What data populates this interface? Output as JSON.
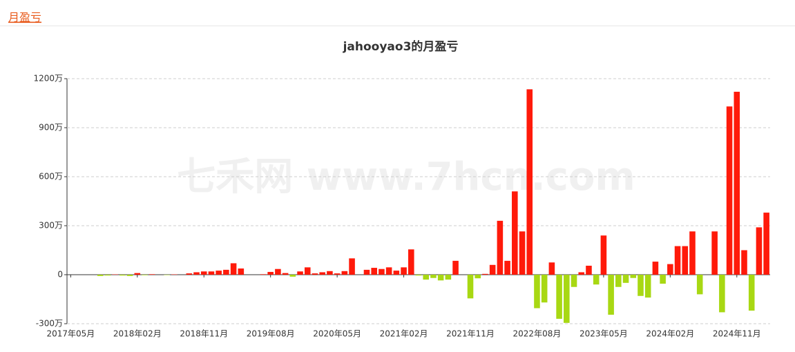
{
  "header": {
    "tab": "月盈亏"
  },
  "chart_data": {
    "type": "bar",
    "title": "jahooyao3的月盈亏",
    "watermark": "七禾网 www.7hcn.com",
    "categories": [
      "2017年05月",
      null,
      null,
      null,
      null,
      null,
      null,
      null,
      null,
      "2018年02月",
      null,
      null,
      null,
      null,
      null,
      null,
      null,
      null,
      "2018年11月",
      null,
      null,
      null,
      null,
      null,
      null,
      null,
      null,
      "2019年08月",
      null,
      null,
      null,
      null,
      null,
      null,
      null,
      null,
      "2020年05月",
      null,
      null,
      null,
      null,
      null,
      null,
      null,
      null,
      "2021年02月",
      null,
      null,
      null,
      null,
      null,
      null,
      null,
      null,
      "2021年11月",
      null,
      null,
      null,
      null,
      null,
      null,
      null,
      null,
      "2022年08月",
      null,
      null,
      null,
      null,
      null,
      null,
      null,
      null,
      "2023年05月",
      null,
      null,
      null,
      null,
      null,
      null,
      null,
      null,
      "2024年02月",
      null,
      null,
      null,
      null,
      null,
      null,
      null,
      null,
      "2024年11月",
      null,
      null,
      null,
      null
    ],
    "values": [
      0,
      0,
      0,
      0,
      -8,
      -5,
      2,
      -5,
      -8,
      10,
      -3,
      3,
      0,
      -2,
      2,
      0,
      8,
      15,
      20,
      20,
      25,
      30,
      70,
      38,
      0,
      0,
      3,
      17,
      35,
      10,
      -12,
      20,
      45,
      8,
      15,
      22,
      8,
      22,
      100,
      0,
      30,
      42,
      35,
      45,
      25,
      45,
      155,
      -5,
      -30,
      -20,
      -35,
      -30,
      85,
      0,
      -145,
      -22,
      5,
      60,
      330,
      85,
      510,
      265,
      1135,
      -205,
      -170,
      75,
      -270,
      -295,
      -75,
      15,
      55,
      -60,
      240,
      -245,
      -75,
      -50,
      -20,
      -130,
      -140,
      80,
      -55,
      65,
      175,
      175,
      265,
      -120,
      0,
      265,
      -230,
      1030,
      1120,
      150,
      -220,
      290,
      380
    ],
    "positive_color": "#ff1a0a",
    "negative_color": "#a8d813",
    "ylim": [
      -300,
      1200
    ],
    "yticks": [
      {
        "value": -300,
        "label": "-300万"
      },
      0,
      {
        "value": 300,
        "label": "300万"
      },
      {
        "value": 600,
        "label": "600万"
      },
      {
        "value": 900,
        "label": "900万"
      },
      {
        "value": 1200,
        "label": "1200万"
      }
    ],
    "grid": true
  }
}
